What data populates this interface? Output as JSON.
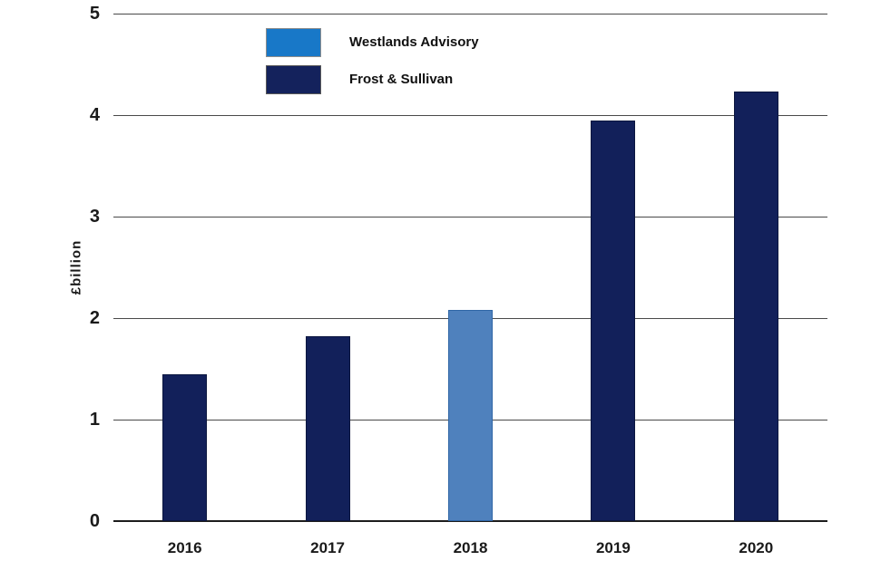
{
  "chart_data": {
    "type": "bar",
    "title": "",
    "xlabel": "",
    "ylabel": "£billion",
    "categories": [
      "2016",
      "2017",
      "2018",
      "2019",
      "2020"
    ],
    "values": [
      1.45,
      1.82,
      2.08,
      3.95,
      4.23
    ],
    "bar_series": [
      "Frost & Sullivan",
      "Frost & Sullivan",
      "Westlands Advisory",
      "Frost & Sullivan",
      "Frost & Sullivan"
    ],
    "series": [
      {
        "name": "Westlands Advisory",
        "legend_swatch_color": "#1878C8",
        "legend_swatch_border": "#8C8C8C",
        "bar_color": "#4F81BD",
        "bar_border": "#2F66A6"
      },
      {
        "name": "Frost & Sullivan",
        "legend_swatch_color": "#14225C",
        "legend_swatch_border": "#595959",
        "bar_color": "#12205A",
        "bar_border": "#0B163F"
      }
    ],
    "ylim": [
      0,
      5
    ],
    "yticks": [
      5,
      4,
      3,
      2,
      1,
      0
    ],
    "grid": true,
    "gridline_color": "#4A4A4A",
    "axis_line_color": "#1C1C1C",
    "legend_position": "top-left-inside",
    "background_color": "#FFFFFF"
  }
}
